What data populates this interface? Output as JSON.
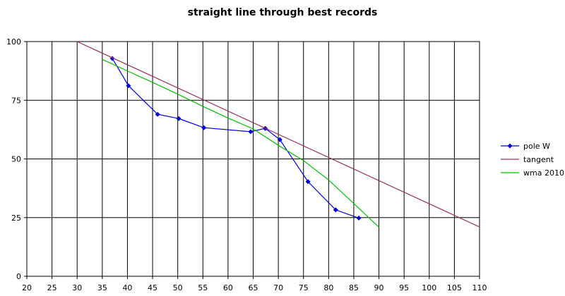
{
  "chart_data": {
    "type": "line",
    "title": "straight line through best records",
    "xlabel": "",
    "ylabel": "",
    "xlim": [
      20,
      110
    ],
    "ylim": [
      0,
      100
    ],
    "xticks": [
      20,
      25,
      30,
      35,
      40,
      45,
      50,
      55,
      60,
      65,
      70,
      75,
      80,
      85,
      90,
      95,
      100,
      105,
      110
    ],
    "yticks": [
      0,
      25,
      50,
      75,
      100
    ],
    "grid": true,
    "legend_position": "right",
    "series": [
      {
        "name": "pole W",
        "color": "#0000dd",
        "marker": "diamond",
        "x": [
          37,
          40.2,
          46,
          50.2,
          55.2,
          64.5,
          67.4,
          70.3,
          75.9,
          81.4,
          86
        ],
        "y": [
          92.8,
          81.2,
          69,
          67.2,
          63.3,
          61.6,
          63,
          58.2,
          40.3,
          28.3,
          24.8
        ]
      },
      {
        "name": "tangent",
        "color": "#a0305a",
        "marker": "none",
        "x": [
          30,
          110
        ],
        "y": [
          100,
          21
        ]
      },
      {
        "name": "wma 2010",
        "color": "#00c000",
        "marker": "none",
        "x": [
          35,
          40,
          45,
          50,
          55,
          60,
          65,
          70,
          75,
          80,
          85,
          90
        ],
        "y": [
          92.4,
          87.5,
          82.6,
          77.6,
          72.4,
          67.4,
          62.8,
          55.8,
          49.3,
          41,
          31,
          20.9
        ]
      }
    ]
  }
}
